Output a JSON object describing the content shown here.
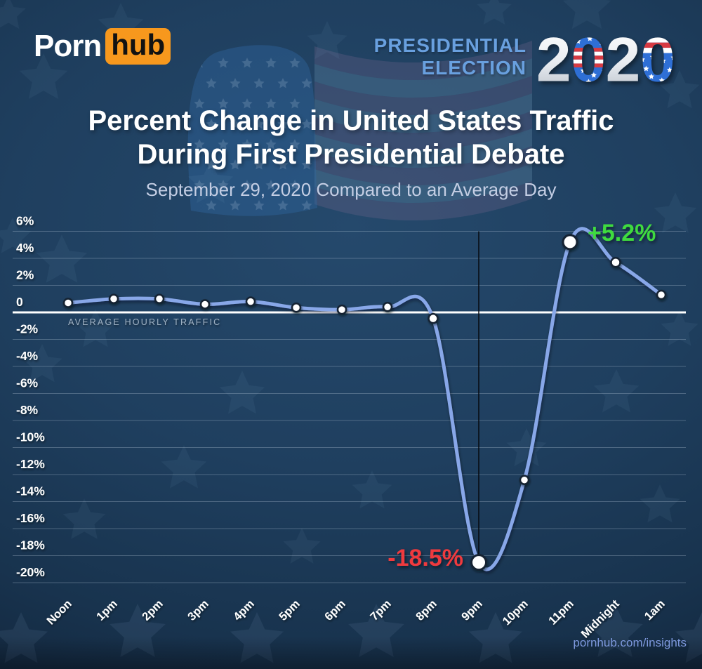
{
  "brand": {
    "porn": "Porn",
    "hub": "hub"
  },
  "election": {
    "line1": "PRESIDENTIAL",
    "line2": "ELECTION",
    "digits": [
      "2",
      "0",
      "2",
      "0"
    ]
  },
  "header": {
    "title_line1": "Percent Change in United States Traffic",
    "title_line2": "During First Presidential Debate",
    "subtitle": "September 29, 2020 Compared to an Average Day"
  },
  "footer": {
    "link": "pornhub.com/insights"
  },
  "colors": {
    "logo_orange": "#F7981D",
    "election_blue": "#69A0DF",
    "line": "#88A7E8",
    "negative_annotation": "#EF3A3E",
    "positive_annotation": "#3FDB3F",
    "flag_blue": "#2E6FD6",
    "flag_red": "#D63A42"
  },
  "chart_data": {
    "type": "line",
    "title": "Percent Change in United States Traffic During First Presidential Debate",
    "subtitle": "September 29, 2020 Compared to an Average Day",
    "categories": [
      "Noon",
      "1pm",
      "2pm",
      "3pm",
      "4pm",
      "5pm",
      "6pm",
      "7pm",
      "8pm",
      "9pm",
      "10pm",
      "11pm",
      "Midnight",
      "1am"
    ],
    "values": [
      0.7,
      1.0,
      1.0,
      0.6,
      0.8,
      0.35,
      0.2,
      0.4,
      -0.45,
      -18.5,
      -12.4,
      5.2,
      3.7,
      1.3
    ],
    "ylim": [
      -20,
      6
    ],
    "ytick_step": 2,
    "ytick_labels": [
      "6%",
      "4%",
      "2%",
      "0",
      "-2%",
      "-4%",
      "-6%",
      "-8%",
      "-10%",
      "-12%",
      "-14%",
      "-16%",
      "-18%",
      "-20%"
    ],
    "baseline_label": "AVERAGE HOURLY TRAFFIC",
    "grid": true,
    "legend": "none",
    "line_color": "#88A7E8",
    "marker_event_line_category": "9pm",
    "annotations": [
      {
        "category": "9pm",
        "index": 9,
        "label": "-18.5%",
        "color": "#EF3A3E"
      },
      {
        "category": "11pm",
        "index": 11,
        "label": "+5.2%",
        "color": "#3FDB3F"
      }
    ]
  }
}
